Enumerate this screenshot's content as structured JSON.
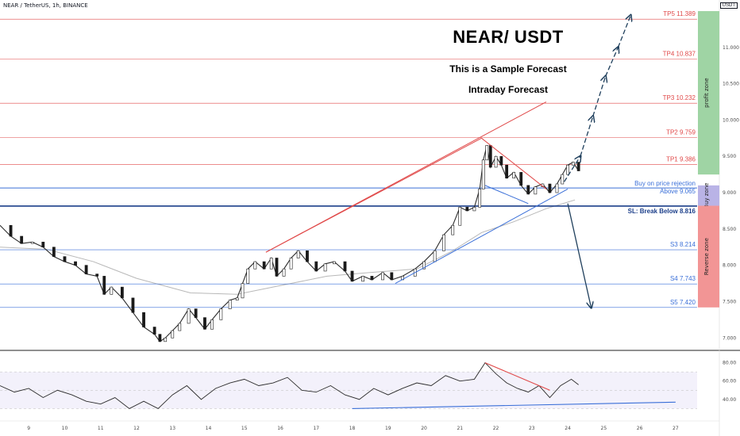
{
  "header": {
    "pair": "NEAR / TetherUS, 1h, BINANCE",
    "quote": "USDT"
  },
  "annotation": {
    "title": "NEAR/ USDT",
    "line1": "This is a Sample Forecast",
    "line2": "Intraday Forecast"
  },
  "chart_data": {
    "type": "candlestick",
    "symbol": "NEAR/USDT",
    "interval": "1h",
    "price_axis": {
      "ylim": [
        6.85,
        11.5
      ],
      "ticks": [
        "7.000",
        "7.500",
        "8.000",
        "8.500",
        "9.000",
        "9.500",
        "10.000",
        "10.500",
        "11.000"
      ]
    },
    "rsi_axis": {
      "ylim": [
        20,
        90
      ],
      "ticks": [
        "40.00",
        "60.00",
        "80.00"
      ]
    },
    "x_axis": {
      "xlim": [
        8.2,
        27.6
      ],
      "ticks": [
        "9",
        "10",
        "11",
        "12",
        "13",
        "14",
        "15",
        "16",
        "17",
        "18",
        "19",
        "20",
        "21",
        "22",
        "23",
        "24",
        "25",
        "26",
        "27"
      ]
    },
    "levels": [
      {
        "name": "TP5",
        "value": 11.389,
        "label": "TP5 11.389",
        "color": "#e04848"
      },
      {
        "name": "TP4",
        "value": 10.837,
        "label": "TP4 10.837",
        "color": "#e04848"
      },
      {
        "name": "TP3",
        "value": 10.232,
        "label": "TP3 10.232",
        "color": "#e04848"
      },
      {
        "name": "TP2",
        "value": 9.759,
        "label": "TP2 9.759",
        "color": "#e04848"
      },
      {
        "name": "TP1",
        "value": 9.386,
        "label": "TP1 9.386",
        "color": "#e04848"
      },
      {
        "name": "Buy",
        "value": 9.065,
        "label": "Buy on price rejection",
        "label2": "Above 9.065",
        "color": "#3a6fd8"
      },
      {
        "name": "SL",
        "value": 8.816,
        "label": "SL: Break Below 8.816",
        "color": "#1c3f8a"
      },
      {
        "name": "S3",
        "value": 8.214,
        "label": "S3 8.214",
        "color": "#3a6fd8"
      },
      {
        "name": "S4",
        "value": 7.743,
        "label": "S4 7.743",
        "color": "#3a6fd8"
      },
      {
        "name": "S5",
        "value": 7.42,
        "label": "S5 7.420",
        "color": "#3a6fd8"
      }
    ],
    "zones": [
      {
        "label": "profit zone",
        "from": 9.25,
        "to": 11.5,
        "color": "#9fd4a4"
      },
      {
        "label": "Buy zone",
        "from": 8.82,
        "to": 9.1,
        "color": "#b9b3e6"
      },
      {
        "label": "Reverse zone",
        "from": 7.42,
        "to": 8.82,
        "color": "#f29595"
      }
    ],
    "price_path": [
      [
        8.2,
        8.55
      ],
      [
        8.5,
        8.4
      ],
      [
        8.8,
        8.3
      ],
      [
        9.1,
        8.32
      ],
      [
        9.4,
        8.25
      ],
      [
        9.7,
        8.12
      ],
      [
        10.0,
        8.05
      ],
      [
        10.3,
        8.0
      ],
      [
        10.6,
        7.88
      ],
      [
        10.9,
        7.85
      ],
      [
        11.1,
        7.6
      ],
      [
        11.3,
        7.7
      ],
      [
        11.6,
        7.55
      ],
      [
        11.9,
        7.35
      ],
      [
        12.2,
        7.15
      ],
      [
        12.5,
        7.05
      ],
      [
        12.65,
        6.95
      ],
      [
        12.8,
        7.0
      ],
      [
        13.0,
        7.1
      ],
      [
        13.2,
        7.2
      ],
      [
        13.45,
        7.4
      ],
      [
        13.65,
        7.28
      ],
      [
        13.9,
        7.12
      ],
      [
        14.1,
        7.25
      ],
      [
        14.35,
        7.4
      ],
      [
        14.6,
        7.52
      ],
      [
        14.8,
        7.55
      ],
      [
        14.95,
        7.75
      ],
      [
        15.1,
        7.95
      ],
      [
        15.3,
        8.05
      ],
      [
        15.55,
        7.95
      ],
      [
        15.75,
        8.1
      ],
      [
        15.9,
        7.85
      ],
      [
        16.1,
        7.95
      ],
      [
        16.3,
        8.1
      ],
      [
        16.5,
        8.2
      ],
      [
        16.75,
        8.05
      ],
      [
        17.0,
        7.92
      ],
      [
        17.25,
        8.02
      ],
      [
        17.5,
        8.05
      ],
      [
        17.8,
        7.92
      ],
      [
        18.0,
        7.78
      ],
      [
        18.3,
        7.85
      ],
      [
        18.55,
        7.8
      ],
      [
        18.85,
        7.9
      ],
      [
        19.1,
        7.8
      ],
      [
        19.4,
        7.85
      ],
      [
        19.75,
        7.95
      ],
      [
        20.0,
        8.05
      ],
      [
        20.3,
        8.2
      ],
      [
        20.55,
        8.42
      ],
      [
        20.8,
        8.55
      ],
      [
        21.0,
        8.8
      ],
      [
        21.2,
        8.75
      ],
      [
        21.4,
        8.8
      ],
      [
        21.55,
        9.05
      ],
      [
        21.65,
        9.45
      ],
      [
        21.75,
        9.65
      ],
      [
        21.85,
        9.35
      ],
      [
        22.0,
        9.5
      ],
      [
        22.15,
        9.38
      ],
      [
        22.3,
        9.2
      ],
      [
        22.5,
        9.28
      ],
      [
        22.7,
        9.1
      ],
      [
        22.9,
        8.98
      ],
      [
        23.1,
        9.08
      ],
      [
        23.3,
        9.12
      ],
      [
        23.5,
        9.0
      ],
      [
        23.7,
        9.12
      ],
      [
        23.85,
        9.25
      ],
      [
        24.0,
        9.38
      ],
      [
        24.15,
        9.42
      ],
      [
        24.3,
        9.3
      ]
    ],
    "moving_average": [
      [
        8.2,
        8.25
      ],
      [
        9.5,
        8.22
      ],
      [
        10.8,
        8.05
      ],
      [
        12.0,
        7.82
      ],
      [
        13.5,
        7.62
      ],
      [
        14.8,
        7.6
      ],
      [
        16.0,
        7.72
      ],
      [
        17.3,
        7.85
      ],
      [
        18.5,
        7.9
      ],
      [
        19.8,
        7.95
      ],
      [
        20.8,
        8.2
      ],
      [
        21.6,
        8.45
      ],
      [
        22.5,
        8.6
      ],
      [
        23.4,
        8.78
      ],
      [
        24.2,
        8.9
      ]
    ],
    "trendlines": [
      {
        "color": "#e04848",
        "points": [
          [
            15.6,
            8.18
          ],
          [
            21.6,
            9.75
          ]
        ]
      },
      {
        "color": "#e04848",
        "points": [
          [
            21.6,
            9.75
          ],
          [
            23.4,
            9.05
          ]
        ]
      },
      {
        "color": "#3a6fd8",
        "points": [
          [
            21.7,
            9.1
          ],
          [
            22.9,
            8.85
          ]
        ]
      },
      {
        "color": "#3a6fd8",
        "points": [
          [
            19.2,
            7.75
          ],
          [
            24.0,
            9.05
          ]
        ]
      },
      {
        "color": "#e04848",
        "points": [
          [
            15.6,
            8.18
          ],
          [
            23.4,
            10.25
          ]
        ]
      }
    ],
    "rsi_path": [
      [
        8.2,
        55
      ],
      [
        8.6,
        48
      ],
      [
        9.0,
        52
      ],
      [
        9.4,
        42
      ],
      [
        9.8,
        50
      ],
      [
        10.2,
        45
      ],
      [
        10.6,
        38
      ],
      [
        11.0,
        35
      ],
      [
        11.4,
        42
      ],
      [
        11.8,
        30
      ],
      [
        12.2,
        38
      ],
      [
        12.6,
        30
      ],
      [
        13.0,
        45
      ],
      [
        13.4,
        55
      ],
      [
        13.8,
        40
      ],
      [
        14.2,
        52
      ],
      [
        14.6,
        58
      ],
      [
        15.0,
        62
      ],
      [
        15.4,
        55
      ],
      [
        15.8,
        58
      ],
      [
        16.2,
        64
      ],
      [
        16.6,
        50
      ],
      [
        17.0,
        48
      ],
      [
        17.4,
        55
      ],
      [
        17.8,
        45
      ],
      [
        18.2,
        40
      ],
      [
        18.6,
        52
      ],
      [
        19.0,
        45
      ],
      [
        19.4,
        52
      ],
      [
        19.8,
        58
      ],
      [
        20.2,
        55
      ],
      [
        20.6,
        66
      ],
      [
        21.0,
        60
      ],
      [
        21.4,
        62
      ],
      [
        21.7,
        80
      ],
      [
        22.0,
        68
      ],
      [
        22.3,
        58
      ],
      [
        22.6,
        52
      ],
      [
        22.9,
        48
      ],
      [
        23.2,
        55
      ],
      [
        23.5,
        42
      ],
      [
        23.8,
        55
      ],
      [
        24.1,
        62
      ],
      [
        24.3,
        56
      ]
    ],
    "rsi_lines": [
      {
        "color": "#e04848",
        "points": [
          [
            21.7,
            80
          ],
          [
            23.5,
            50
          ]
        ]
      },
      {
        "color": "#3a6fd8",
        "points": [
          [
            18.0,
            30
          ],
          [
            27.0,
            37
          ]
        ]
      }
    ],
    "forecast": {
      "up": [
        [
          23.9,
          9.15
        ],
        [
          24.35,
          9.5
        ],
        [
          24.7,
          10.05
        ],
        [
          25.05,
          10.6
        ],
        [
          25.4,
          11.0
        ],
        [
          25.75,
          11.44
        ]
      ],
      "down": [
        [
          24.0,
          8.85
        ],
        [
          24.65,
          7.42
        ]
      ]
    }
  }
}
